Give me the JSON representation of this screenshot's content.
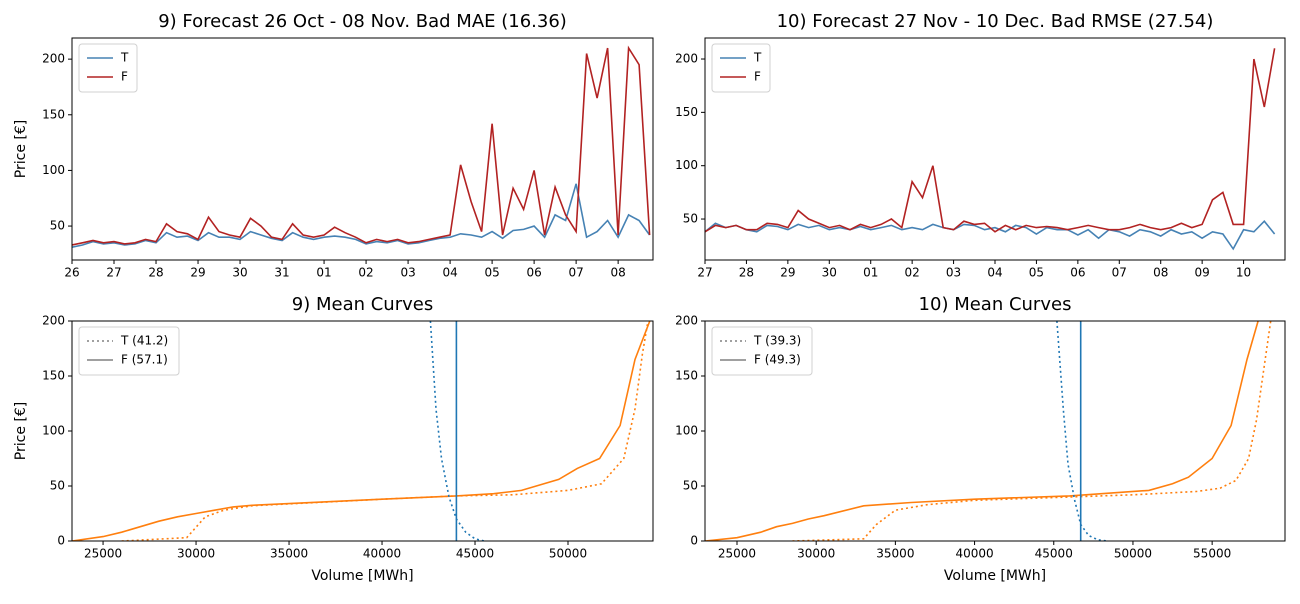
{
  "chart_data": [
    {
      "type": "line",
      "title": "9) Forecast 26 Oct - 08 Nov. Bad MAE (16.36)",
      "ylabel": "Price [€]",
      "x": [
        0,
        0.25,
        0.5,
        0.75,
        1,
        1.25,
        1.5,
        1.75,
        2,
        2.25,
        2.5,
        2.75,
        3,
        3.25,
        3.5,
        3.75,
        4,
        4.25,
        4.5,
        4.75,
        5,
        5.25,
        5.5,
        5.75,
        6,
        6.25,
        6.5,
        6.75,
        7,
        7.25,
        7.5,
        7.75,
        8,
        8.25,
        8.5,
        8.75,
        9,
        9.25,
        9.5,
        9.75,
        10,
        10.25,
        10.5,
        10.75,
        11,
        11.25,
        11.5,
        11.75,
        12,
        12.25,
        12.5,
        12.75,
        13,
        13.25,
        13.5,
        13.75
      ],
      "xlim": [
        0,
        13.83
      ],
      "xticks": [
        {
          "value": 0,
          "label": "26"
        },
        {
          "value": 1,
          "label": "27"
        },
        {
          "value": 2,
          "label": "28"
        },
        {
          "value": 3,
          "label": "29"
        },
        {
          "value": 4,
          "label": "30"
        },
        {
          "value": 5,
          "label": "31"
        },
        {
          "value": 6,
          "label": "01"
        },
        {
          "value": 7,
          "label": "02"
        },
        {
          "value": 8,
          "label": "03"
        },
        {
          "value": 9,
          "label": "04"
        },
        {
          "value": 10,
          "label": "05"
        },
        {
          "value": 11,
          "label": "06"
        },
        {
          "value": 12,
          "label": "07"
        },
        {
          "value": 13,
          "label": "08"
        }
      ],
      "ylim": [
        19.5,
        219
      ],
      "yticks": [
        50,
        100,
        150,
        200
      ],
      "legend": "upper left",
      "series": [
        {
          "name": "T",
          "color": "#4682b4",
          "values": [
            31,
            33,
            36,
            34,
            35,
            33,
            34,
            37,
            35,
            44,
            40,
            41,
            37,
            44,
            40,
            40,
            38,
            45,
            42,
            39,
            37,
            44,
            40,
            38,
            40,
            41,
            40,
            38,
            34,
            36,
            35,
            37,
            34,
            35,
            37,
            39,
            40,
            43,
            42,
            40,
            45,
            39,
            46,
            47,
            50,
            40,
            60,
            55,
            88,
            40,
            45,
            55,
            40,
            60,
            55,
            42
          ]
        },
        {
          "name": "F",
          "color": "#b22222",
          "values": [
            33,
            35,
            37,
            35,
            36,
            34,
            35,
            38,
            36,
            52,
            45,
            43,
            38,
            58,
            45,
            42,
            40,
            57,
            50,
            40,
            38,
            52,
            42,
            40,
            42,
            49,
            44,
            40,
            35,
            38,
            36,
            38,
            35,
            36,
            38,
            40,
            42,
            105,
            72,
            45,
            142,
            42,
            84,
            65,
            100,
            42,
            85,
            60,
            45,
            205,
            165,
            210,
            42,
            210,
            195,
            42
          ]
        }
      ]
    },
    {
      "type": "line",
      "title": "10) Forecast 27 Nov - 10 Dec. Bad RMSE (27.54)",
      "x": [
        0,
        0.25,
        0.5,
        0.75,
        1,
        1.25,
        1.5,
        1.75,
        2,
        2.25,
        2.5,
        2.75,
        3,
        3.25,
        3.5,
        3.75,
        4,
        4.25,
        4.5,
        4.75,
        5,
        5.25,
        5.5,
        5.75,
        6,
        6.25,
        6.5,
        6.75,
        7,
        7.25,
        7.5,
        7.75,
        8,
        8.25,
        8.5,
        8.75,
        9,
        9.25,
        9.5,
        9.75,
        10,
        10.25,
        10.5,
        10.75,
        11,
        11.25,
        11.5,
        11.75,
        12,
        12.25,
        12.5,
        12.75,
        13,
        13.25,
        13.5,
        13.75
      ],
      "xlim": [
        0,
        14
      ],
      "xticks": [
        {
          "value": 0,
          "label": "27"
        },
        {
          "value": 1,
          "label": "28"
        },
        {
          "value": 2,
          "label": "29"
        },
        {
          "value": 3,
          "label": "30"
        },
        {
          "value": 4,
          "label": "01"
        },
        {
          "value": 5,
          "label": "02"
        },
        {
          "value": 6,
          "label": "03"
        },
        {
          "value": 7,
          "label": "04"
        },
        {
          "value": 8,
          "label": "05"
        },
        {
          "value": 9,
          "label": "06"
        },
        {
          "value": 10,
          "label": "07"
        },
        {
          "value": 11,
          "label": "08"
        },
        {
          "value": 12,
          "label": "09"
        },
        {
          "value": 13,
          "label": "10"
        }
      ],
      "ylim": [
        11.6,
        219.7
      ],
      "yticks": [
        50,
        100,
        150,
        200
      ],
      "legend": "upper left",
      "series": [
        {
          "name": "T",
          "color": "#4682b4",
          "values": [
            38,
            46,
            42,
            44,
            40,
            38,
            44,
            43,
            40,
            45,
            42,
            44,
            40,
            42,
            40,
            43,
            40,
            42,
            44,
            40,
            42,
            40,
            45,
            42,
            40,
            45,
            44,
            40,
            42,
            38,
            44,
            42,
            36,
            42,
            40,
            40,
            35,
            40,
            32,
            40,
            38,
            34,
            40,
            38,
            34,
            40,
            36,
            38,
            32,
            38,
            36,
            22,
            40,
            38,
            48,
            36
          ]
        },
        {
          "name": "F",
          "color": "#b22222",
          "values": [
            38,
            44,
            42,
            44,
            40,
            40,
            46,
            45,
            42,
            58,
            50,
            46,
            42,
            44,
            40,
            45,
            42,
            45,
            50,
            42,
            85,
            70,
            100,
            42,
            40,
            48,
            45,
            46,
            38,
            44,
            40,
            44,
            42,
            43,
            42,
            40,
            42,
            44,
            42,
            40,
            40,
            42,
            45,
            42,
            40,
            42,
            46,
            42,
            45,
            68,
            75,
            45,
            45,
            200,
            155,
            210
          ]
        }
      ]
    },
    {
      "type": "line",
      "title": "9) Mean Curves",
      "xlabel": "Volume [MWh]",
      "ylabel": "Price [€]",
      "xlim": [
        23330,
        54570
      ],
      "xticks": [
        25000,
        30000,
        35000,
        40000,
        45000,
        50000
      ],
      "ylim": [
        0,
        200
      ],
      "yticks": [
        0,
        50,
        100,
        150,
        200
      ],
      "legend": "upper left",
      "legend_entries": [
        {
          "name": "T (41.2)",
          "style": "dotted",
          "color": "#808080"
        },
        {
          "name": "F (57.1)",
          "style": "solid",
          "color": "#808080"
        }
      ],
      "series": [
        {
          "color": "#ff7f0e",
          "style": "solid",
          "x": [
            23330,
            25000,
            26000,
            27000,
            28000,
            29000,
            30000,
            31000,
            32000,
            33000,
            35000,
            40000,
            44000,
            46000,
            47500,
            49500,
            50500,
            51700,
            52800,
            53600,
            54400
          ],
          "values": [
            0,
            4,
            8,
            13,
            18,
            22,
            25,
            28,
            31,
            32.5,
            34,
            38,
            41,
            43,
            46,
            56,
            66,
            75,
            105,
            165,
            200
          ]
        },
        {
          "color": "#ff7f0e",
          "style": "dotted",
          "x": [
            26000,
            29500,
            30500,
            31500,
            33000,
            40000,
            44000,
            47000,
            50000,
            51800,
            53000,
            53600,
            54000,
            54300
          ],
          "values": [
            0,
            3,
            22,
            28,
            32,
            38,
            41,
            42,
            46,
            52,
            75,
            120,
            170,
            200
          ]
        },
        {
          "color": "#1f77b4",
          "style": "dotted",
          "x": [
            42600,
            42900,
            43200,
            43600,
            44000,
            44500,
            45000,
            45500
          ],
          "values": [
            200,
            120,
            75,
            40,
            20,
            8,
            2,
            0
          ]
        },
        {
          "color": "#1f77b4",
          "style": "solid",
          "x": [
            44000,
            44000
          ],
          "values": [
            0,
            200
          ]
        }
      ]
    },
    {
      "type": "line",
      "title": "10) Mean Curves",
      "xlabel": "Volume [MWh]",
      "xlim": [
        22980,
        59600
      ],
      "xticks": [
        25000,
        30000,
        35000,
        40000,
        45000,
        50000,
        55000
      ],
      "ylim": [
        0,
        200
      ],
      "yticks": [
        0,
        50,
        100,
        150,
        200
      ],
      "legend": "upper left",
      "legend_entries": [
        {
          "name": "T (39.3)",
          "style": "dotted",
          "color": "#808080"
        },
        {
          "name": "F (49.3)",
          "style": "solid",
          "color": "#808080"
        }
      ],
      "series": [
        {
          "color": "#ff7f0e",
          "style": "solid",
          "x": [
            22980,
            25000,
            26500,
            27500,
            28500,
            29500,
            30500,
            33000,
            36000,
            40000,
            46000,
            51000,
            52500,
            53500,
            55000,
            56200,
            57200,
            57900
          ],
          "values": [
            0,
            3,
            8,
            13,
            16,
            20,
            23,
            32,
            35,
            38,
            41,
            46,
            52,
            58,
            75,
            105,
            165,
            200
          ]
        },
        {
          "color": "#ff7f0e",
          "style": "dotted",
          "x": [
            28500,
            33000,
            33800,
            35000,
            37000,
            40000,
            46000,
            50000,
            54000,
            55500,
            56500,
            57300,
            57800,
            58300,
            58700
          ],
          "values": [
            0,
            2,
            15,
            28,
            33,
            37,
            40,
            42,
            45,
            48,
            55,
            75,
            110,
            160,
            200
          ]
        },
        {
          "color": "#1f77b4",
          "style": "dotted",
          "x": [
            45200,
            45600,
            45900,
            46300,
            46700,
            47200,
            47800,
            48400
          ],
          "values": [
            200,
            120,
            70,
            38,
            15,
            5,
            1,
            0
          ]
        },
        {
          "color": "#1f77b4",
          "style": "solid",
          "x": [
            46700,
            46700
          ],
          "values": [
            0,
            200
          ]
        }
      ]
    }
  ]
}
